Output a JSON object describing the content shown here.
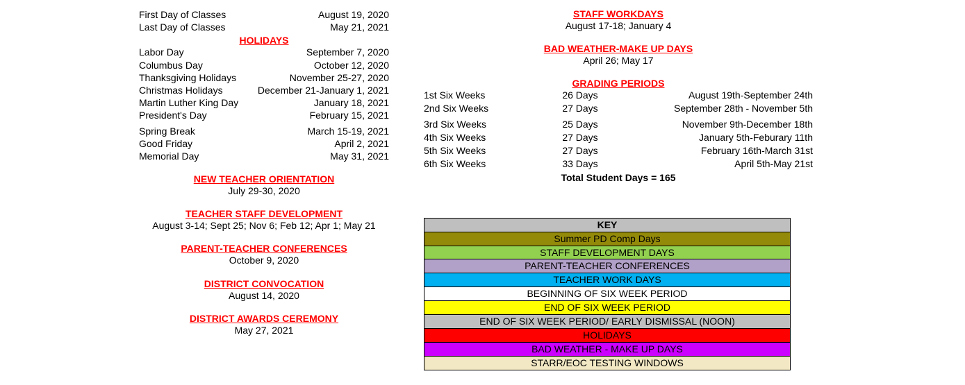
{
  "classes": {
    "first_label": "First Day of Classes",
    "first_date": "August 19, 2020",
    "last_label": "Last Day of Classes",
    "last_date": "May 21, 2021"
  },
  "holidays": {
    "title": "HOLIDAYS",
    "items": [
      {
        "label": "Labor Day",
        "date": "September 7, 2020"
      },
      {
        "label": "Columbus Day",
        "date": "October 12, 2020"
      },
      {
        "label": "Thanksgiving Holidays",
        "date": "November 25-27, 2020"
      },
      {
        "label": "Christmas Holidays",
        "date": "December 21-January 1, 2021"
      },
      {
        "label": "Martin Luther King Day",
        "date": "January 18, 2021"
      },
      {
        "label": "President's Day",
        "date": "February 15, 2021"
      },
      {
        "label": "Spring Break",
        "date": "March 15-19, 2021"
      },
      {
        "label": "Good Friday",
        "date": "April 2, 2021"
      },
      {
        "label": "Memorial Day",
        "date": "May 31, 2021"
      }
    ]
  },
  "left_events": [
    {
      "title": "NEW TEACHER ORIENTATION",
      "detail": "July 29-30, 2020"
    },
    {
      "title": "TEACHER STAFF DEVELOPMENT",
      "detail": "August 3-14; Sept 25; Nov 6; Feb 12; Apr 1; May 21"
    },
    {
      "title": "PARENT-TEACHER CONFERENCES",
      "detail": "October 9, 2020"
    },
    {
      "title": "DISTRICT CONVOCATION",
      "detail": "August 14, 2020"
    },
    {
      "title": "DISTRICT AWARDS CEREMONY",
      "detail": "May 27, 2021"
    }
  ],
  "staff_workdays": {
    "title": "STAFF WORKDAYS",
    "detail": "August 17-18; January 4"
  },
  "bad_weather": {
    "title": "BAD WEATHER-MAKE UP DAYS",
    "detail": "April 26; May 17"
  },
  "grading": {
    "title": "GRADING PERIODS",
    "rows": [
      {
        "name": "1st Six Weeks",
        "days": "26 Days",
        "range": "August 19th-September 24th"
      },
      {
        "name": "2nd Six Weeks",
        "days": "27 Days",
        "range": "September 28th - November 5th"
      },
      {
        "name": "3rd Six Weeks",
        "days": "25 Days",
        "range": "November 9th-December 18th"
      },
      {
        "name": "4th Six Weeks",
        "days": "27 Days",
        "range": "January 5th-Feburary 11th"
      },
      {
        "name": "5th Six Weeks",
        "days": "27 Days",
        "range": "February 16th-March 31st"
      },
      {
        "name": "6th Six Weeks",
        "days": "33 Days",
        "range": "April 5th-May 21st"
      }
    ],
    "total": "Total Student Days = 165"
  },
  "key": {
    "header": "KEY",
    "rows": [
      {
        "label": "Summer PD Comp Days",
        "bg": "#948a0a"
      },
      {
        "label": "STAFF DEVELOPMENT DAYS",
        "bg": "#92d050"
      },
      {
        "label": "PARENT-TEACHER CONFERENCES",
        "bg": "#b1a0c7"
      },
      {
        "label": "TEACHER WORK DAYS",
        "bg": "#00b0f0"
      },
      {
        "label": "BEGINNING OF SIX WEEK PERIOD",
        "bg": "#ffffff"
      },
      {
        "label": "END OF SIX WEEK PERIOD",
        "bg": "#ffff00"
      },
      {
        "label": "END OF SIX WEEK PERIOD/ EARLY DISMISSAL (NOON)",
        "bg": "#bfbfbf"
      },
      {
        "label": "HOLIDAYS",
        "bg": "#ff0000"
      },
      {
        "label": "BAD WEATHER - MAKE UP DAYS",
        "bg": "#cc00ff"
      },
      {
        "label": "STARR/EOC TESTING WINDOWS",
        "bg": "#f2e8c4"
      }
    ]
  }
}
